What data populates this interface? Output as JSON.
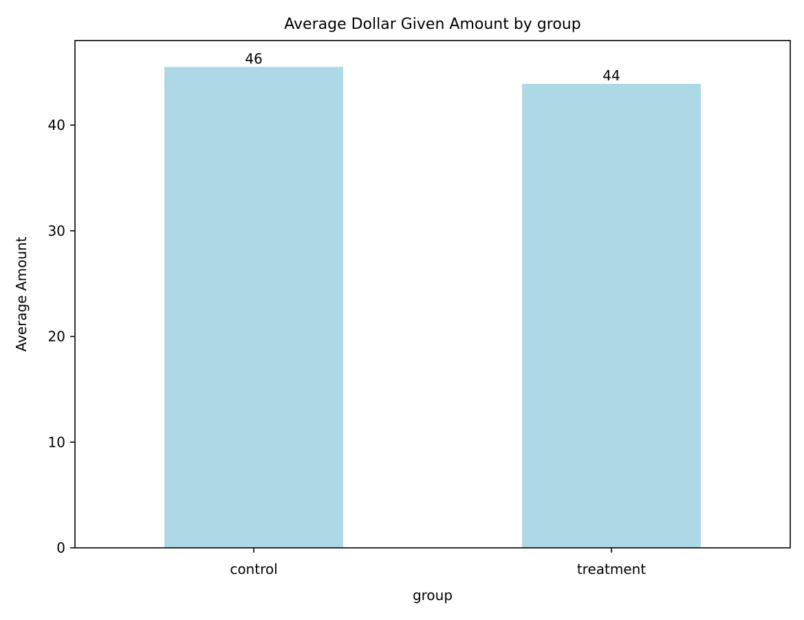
{
  "chart_data": {
    "type": "bar",
    "title": "Average Dollar Given Amount by group",
    "xlabel": "group",
    "ylabel": "Average Amount",
    "categories": [
      "control",
      "treatment"
    ],
    "values": [
      45.5,
      43.9
    ],
    "data_labels": [
      "46",
      "44"
    ],
    "ylim": [
      0,
      48
    ],
    "yticks": [
      0,
      10,
      20,
      30,
      40
    ],
    "ytick_labels": [
      "0",
      "10",
      "20",
      "30",
      "40"
    ],
    "bar_color": "#add8e6",
    "grid": false,
    "legend": "none"
  }
}
